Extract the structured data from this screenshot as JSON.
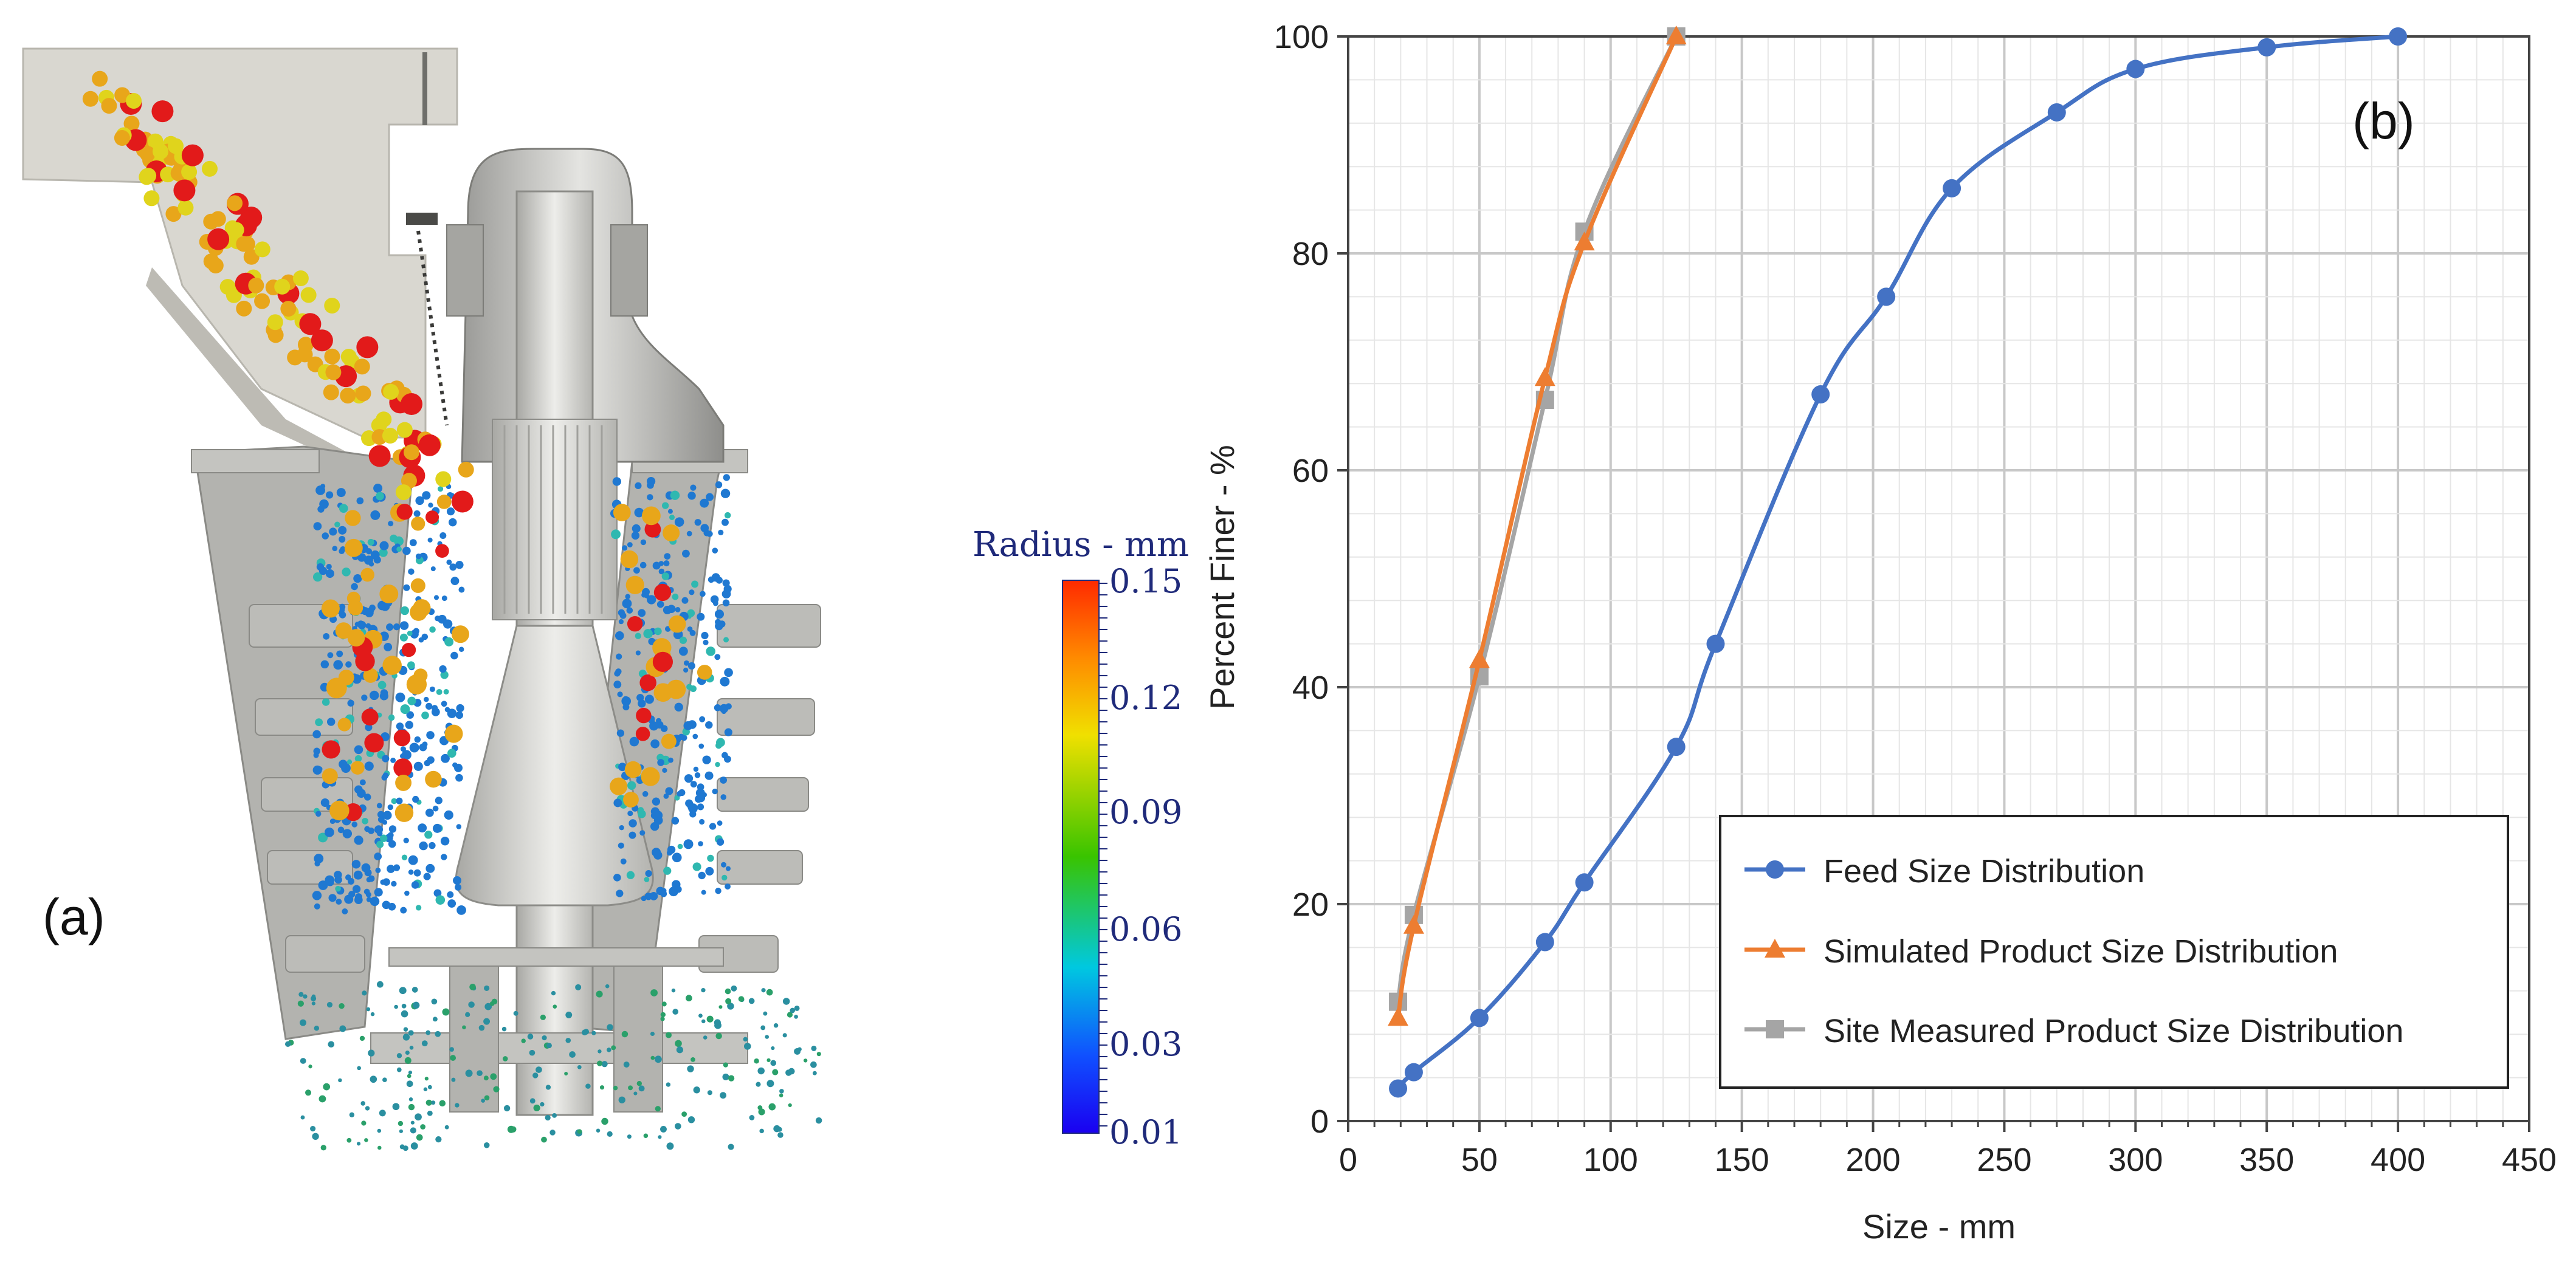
{
  "panel_a": {
    "label": "(a)",
    "colorbar": {
      "title": "Radius - mm",
      "ticks": [
        "0.15",
        "0.12",
        "0.09",
        "0.06",
        "0.03",
        "0.01"
      ],
      "colors": [
        "#ff2a00",
        "#ff8a00",
        "#f0e000",
        "#39c400",
        "#00c8e0",
        "#1050ff",
        "#1a00f0"
      ]
    },
    "colors": {
      "steel": "#c9c9c6",
      "steel_dark": "#8f8f8c",
      "feed_large": "#e21a1a",
      "feed_mid": "#e8a61a",
      "feed_small": "#e0d41c",
      "fines": "#1f78d1"
    }
  },
  "chart_data": {
    "type": "line",
    "panel_label": "(b)",
    "xlabel": "Size - mm",
    "ylabel": "Percent Finer - %",
    "xlim": [
      0,
      450
    ],
    "ylim": [
      0,
      100
    ],
    "xticks": [
      0,
      50,
      100,
      150,
      200,
      250,
      300,
      350,
      400,
      450
    ],
    "yticks": [
      0,
      20,
      40,
      60,
      80,
      100
    ],
    "grid": true,
    "legend_position": "bottom-right",
    "series": [
      {
        "name": "Feed Size Distribution",
        "color": "#4472c4",
        "marker": "circle",
        "x": [
          19,
          25,
          50,
          75,
          90,
          125,
          140,
          180,
          205,
          230,
          270,
          300,
          350,
          400
        ],
        "y": [
          3,
          4.5,
          9.5,
          16.5,
          22,
          34.5,
          44,
          67,
          76,
          86,
          93,
          97,
          99,
          100
        ]
      },
      {
        "name": "Simulated Product Size Distribution",
        "color": "#ed7d31",
        "marker": "triangle",
        "x": [
          19,
          25,
          50,
          75,
          90,
          125
        ],
        "y": [
          9.5,
          18,
          42.5,
          68.5,
          81,
          100
        ]
      },
      {
        "name": "Site Measured Product Size Distribution",
        "color": "#a5a5a5",
        "marker": "square",
        "x": [
          19,
          25,
          50,
          75,
          90,
          125
        ],
        "y": [
          11,
          19,
          41,
          66.5,
          82,
          100
        ]
      }
    ]
  }
}
